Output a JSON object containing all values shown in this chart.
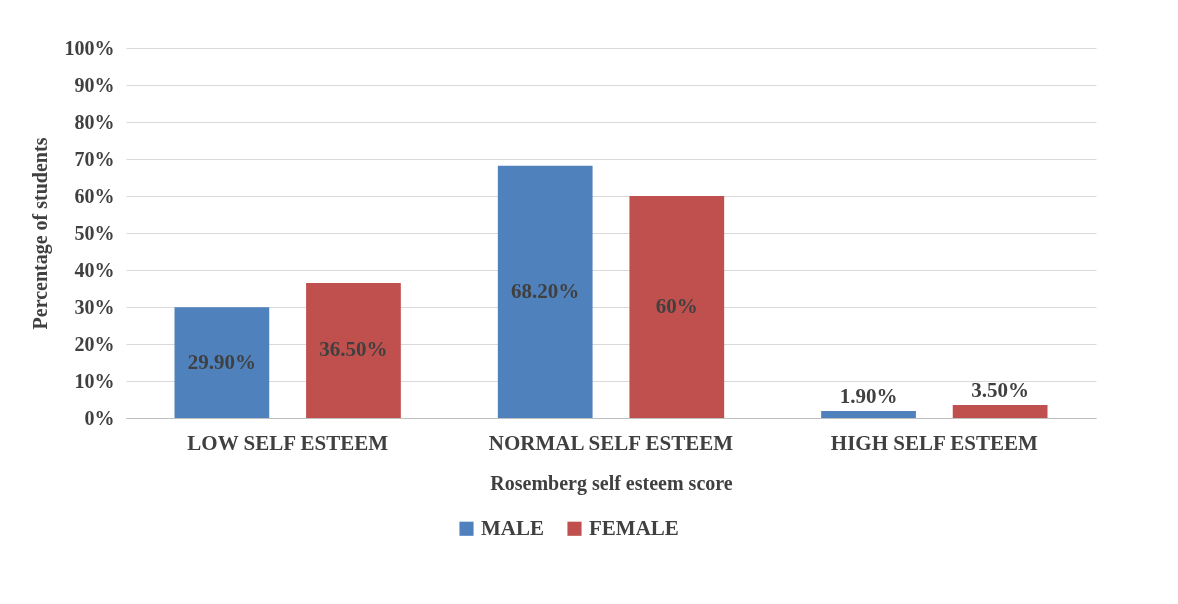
{
  "chart_data": {
    "type": "bar",
    "xlabel": "Rosemberg self esteem score",
    "ylabel": "Percentage of students",
    "categories": [
      "LOW SELF ESTEEM",
      "NORMAL  SELF ESTEEM",
      "HIGH SELF ESTEEM"
    ],
    "series": [
      {
        "name": "MALE",
        "color": "#4f81bd",
        "values": [
          29.9,
          68.2,
          1.9
        ],
        "value_labels": [
          "29.90%",
          "68.20%",
          "1.90%"
        ]
      },
      {
        "name": "FEMALE",
        "color": "#c0504d",
        "values": [
          36.5,
          60,
          3.5
        ],
        "value_labels": [
          "36.50%",
          "60%",
          "3.50%"
        ]
      }
    ],
    "ylim": [
      0,
      100
    ],
    "yticks": [
      {
        "value": 0,
        "label": "0%"
      },
      {
        "value": 10,
        "label": "10%"
      },
      {
        "value": 20,
        "label": "20%"
      },
      {
        "value": 30,
        "label": "30%"
      },
      {
        "value": 40,
        "label": "40%"
      },
      {
        "value": 50,
        "label": "50%"
      },
      {
        "value": 60,
        "label": "60%"
      },
      {
        "value": 70,
        "label": "70%"
      },
      {
        "value": 80,
        "label": "80%"
      },
      {
        "value": 90,
        "label": "90%"
      },
      {
        "value": 100,
        "label": "100%"
      }
    ],
    "grid": "y",
    "legend": "bottom"
  }
}
